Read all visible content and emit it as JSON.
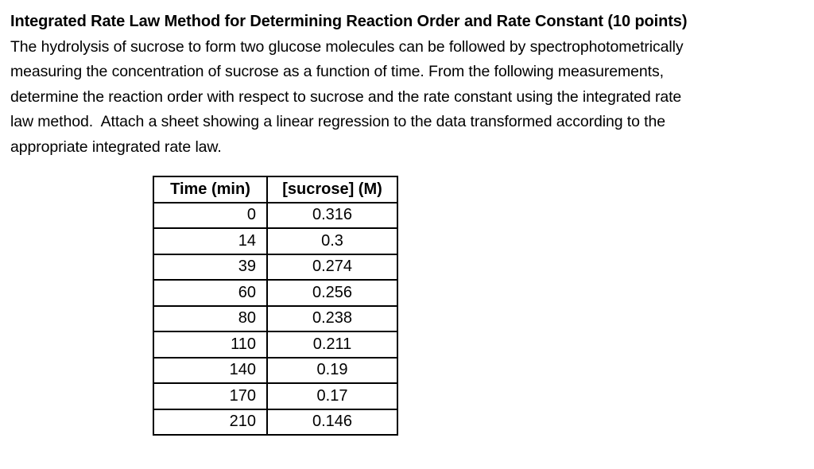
{
  "page": {
    "background": "#ffffff",
    "text_color": "#000000"
  },
  "document": {
    "title": "Integrated Rate Law Method for Determining Reaction Order and Rate Constant (10 points)",
    "paragraph_lines": [
      "The hydrolysis of sucrose to form two glucose molecules can be followed by spectrophotometrically",
      "measuring the concentration of sucrose as a function of time. From the following measurements,",
      "determine the reaction order with respect to sucrose and the rate constant using the integrated rate",
      "law method.  Attach a sheet showing a linear regression to the data transformed according to the",
      "appropriate integrated rate law."
    ]
  },
  "table": {
    "columns": [
      "Time (min)",
      "[sucrose] (M)"
    ],
    "rows": [
      {
        "time": "0",
        "sucrose": "0.316"
      },
      {
        "time": "14",
        "sucrose": "0.3"
      },
      {
        "time": "39",
        "sucrose": "0.274"
      },
      {
        "time": "60",
        "sucrose": "0.256"
      },
      {
        "time": "80",
        "sucrose": "0.238"
      },
      {
        "time": "110",
        "sucrose": "0.211"
      },
      {
        "time": "140",
        "sucrose": "0.19"
      },
      {
        "time": "170",
        "sucrose": "0.17"
      },
      {
        "time": "210",
        "sucrose": "0.146"
      }
    ]
  }
}
